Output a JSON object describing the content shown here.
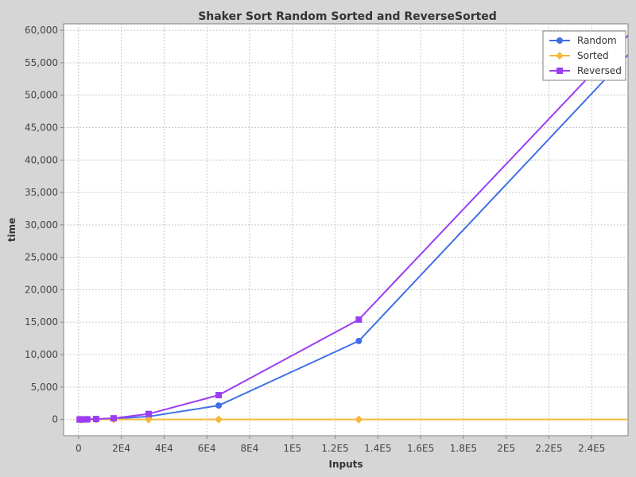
{
  "chart_data": {
    "type": "line",
    "title": "Shaker Sort  Random Sorted and ReverseSorted",
    "xlabel": "Inputs",
    "ylabel": "time",
    "xlim": [
      -7000,
      257000
    ],
    "ylim": [
      -2500,
      61000
    ],
    "x_ticks": [
      0,
      20000,
      40000,
      60000,
      80000,
      100000,
      120000,
      140000,
      160000,
      180000,
      200000,
      220000,
      240000
    ],
    "x_tick_labels": [
      "0",
      "2E4",
      "4E4",
      "6E4",
      "8E4",
      "1E5",
      "1.2E5",
      "1.4E5",
      "1.6E5",
      "1.8E5",
      "2E5",
      "2.2E5",
      "2.4E5"
    ],
    "y_ticks": [
      0,
      5000,
      10000,
      15000,
      20000,
      25000,
      30000,
      35000,
      40000,
      45000,
      50000,
      55000,
      60000
    ],
    "y_tick_labels": [
      "0",
      "5,000",
      "10,000",
      "15,000",
      "20,000",
      "25,000",
      "30,000",
      "35,000",
      "40,000",
      "45,000",
      "50,000",
      "55,000",
      "60,000"
    ],
    "grid": true,
    "legend_position": "top-right",
    "x": [
      512,
      1024,
      2048,
      4096,
      8192,
      16384,
      32768,
      65536,
      131072,
      262144
    ],
    "series": [
      {
        "name": "Random",
        "color": "#3f6fe8",
        "marker": "circle",
        "values": [
          0,
          0,
          5,
          15,
          50,
          120,
          450,
          2150,
          12100,
          58000
        ]
      },
      {
        "name": "Sorted",
        "color": "#f5b93b",
        "marker": "diamond",
        "values": [
          0,
          0,
          0,
          0,
          0,
          0,
          0,
          0,
          0,
          0
        ]
      },
      {
        "name": "Reversed",
        "color": "#9b3df5",
        "marker": "square",
        "values": [
          0,
          0,
          5,
          20,
          70,
          180,
          850,
          3750,
          15400,
          61000
        ]
      }
    ]
  }
}
